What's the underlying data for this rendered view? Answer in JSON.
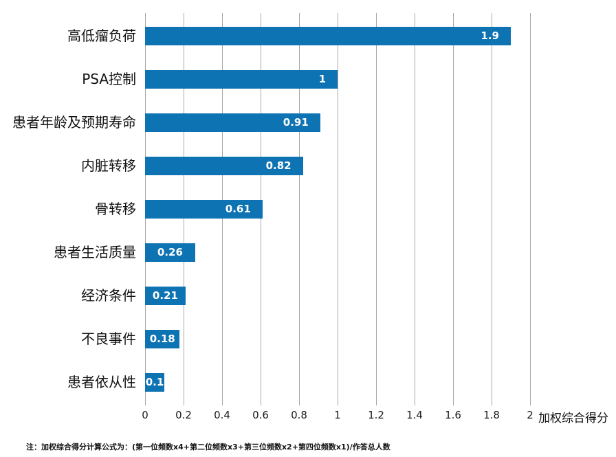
{
  "chart_data": {
    "type": "bar",
    "orientation": "horizontal",
    "title": "",
    "categories": [
      "高低瘤负荷",
      "PSA控制",
      "患者年龄及预期寿命",
      "内脏转移",
      "骨转移",
      "患者生活质量",
      "经济条件",
      "不良事件",
      "患者依从性"
    ],
    "values": [
      1.9,
      1,
      0.91,
      0.82,
      0.61,
      0.26,
      0.21,
      0.18,
      0.1
    ],
    "value_labels": [
      "1.9",
      "1",
      "0.91",
      "0.82",
      "0.61",
      "0.26",
      "0.21",
      "0.18",
      "0.1"
    ],
    "xlabel": "加权综合得分",
    "ylabel": "",
    "xlim": [
      0,
      2
    ],
    "x_ticks": [
      0,
      0.2,
      0.4,
      0.6,
      0.8,
      1,
      1.2,
      1.4,
      1.6,
      1.8,
      2
    ],
    "x_tick_labels": [
      "0",
      "0.2",
      "0.4",
      "0.6",
      "0.8",
      "1",
      "1.2",
      "1.4",
      "1.6",
      "1.8",
      "2"
    ],
    "grid": "vertical",
    "legend": "none",
    "bar_color": "#0e73b2",
    "gridline_color": "#a6a6a6",
    "value_label_color": "#ffffff"
  },
  "footnote": "注：加权综合得分计算公式为：(第一位频数x4+第二位频数x3+第三位频数x2+第四位频数x1)/作答总人数"
}
